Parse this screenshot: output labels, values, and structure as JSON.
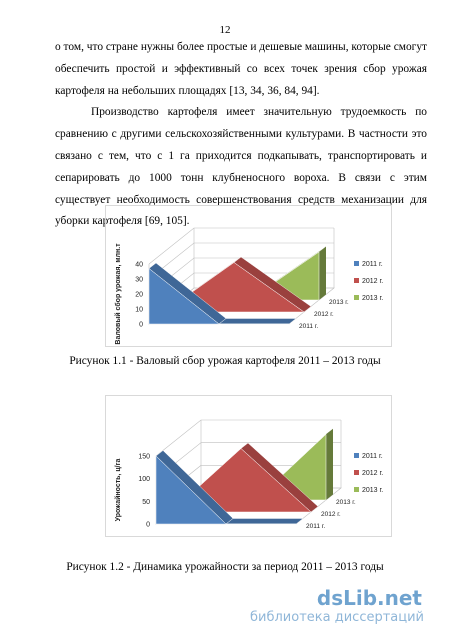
{
  "page_number": "12",
  "paragraphs": [
    "о том, что стране нужны более простые и дешевые машины, которые смогут обеспечить простой и эффективный со всех точек зрения сбор урожая картофеля на небольших площадях [13, 34, 36, 84, 94].",
    "Производство картофеля имеет значительную трудоемкость по сравнению с другими сельскохозяйственными культурами. В частности это связано с тем, что с 1 га приходится подкапывать, транспортировать и сепарировать до 1000 тонн клубненосного вороха. В связи с этим существует необходимость совершенствования средств механизации для уборки картофеля [69, 105]."
  ],
  "figures": [
    {
      "chart_data": {
        "type": "area3d",
        "y_label": "Валовый сбор урожая, млн.т",
        "categories": [
          null,
          null,
          null
        ],
        "series": [
          {
            "name": "2011 г.",
            "color": "#4f81bd",
            "values": [
              37,
              0,
              0
            ]
          },
          {
            "name": "2012 г.",
            "color": "#c0504d",
            "values": [
              0,
              33,
              0
            ]
          },
          {
            "name": "2013 г.",
            "color": "#9bbb59",
            "values": [
              0,
              0,
              32
            ]
          }
        ],
        "ylim": [
          0,
          40
        ],
        "yticks": [
          0,
          10,
          20,
          30,
          40
        ],
        "grid": true,
        "legend": "right"
      },
      "caption": "Рисунок 1.1 - Валовый сбор урожая картофеля 2011 – 2013 годы"
    },
    {
      "chart_data": {
        "type": "area3d",
        "y_label": "Урожайность, ц/га",
        "categories": [
          null,
          null,
          null
        ],
        "series": [
          {
            "name": "2011 г.",
            "color": "#4f81bd",
            "values": [
              150,
              0,
              0
            ]
          },
          {
            "name": "2012 г.",
            "color": "#c0504d",
            "values": [
              0,
              140,
              0
            ]
          },
          {
            "name": "2013 г.",
            "color": "#9bbb59",
            "values": [
              0,
              0,
              145
            ]
          }
        ],
        "ylim": [
          0,
          150
        ],
        "yticks": [
          0,
          50,
          100,
          150
        ],
        "grid": true,
        "legend": "right"
      },
      "caption": "Рисунок 1.2 - Динамика урожайности за период 2011 – 2013 годы"
    }
  ],
  "watermark": {
    "logo": "dsLib.net",
    "subtitle": "библиотека диссертаций"
  }
}
